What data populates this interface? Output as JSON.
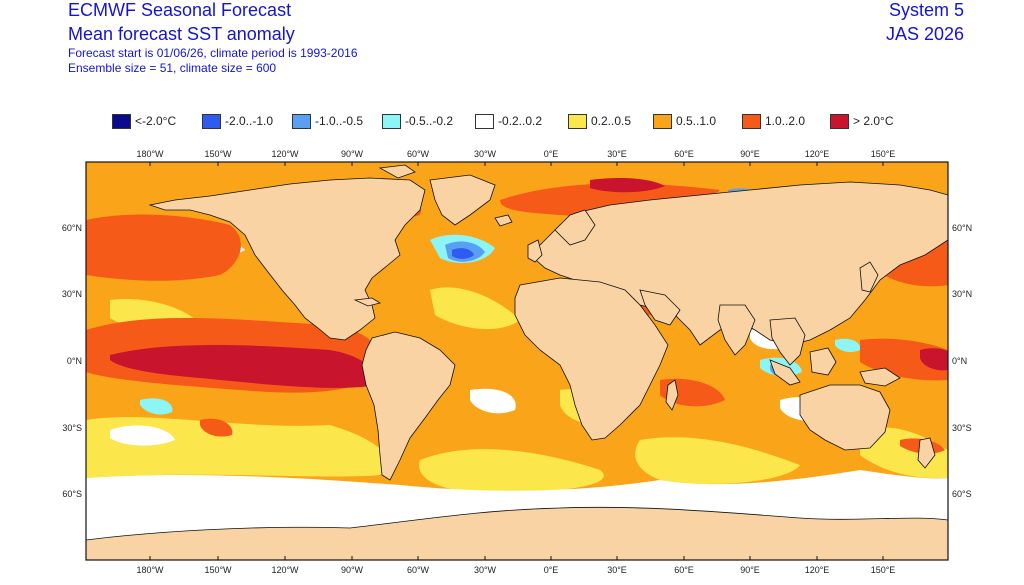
{
  "header": {
    "title": "ECMWF Seasonal Forecast",
    "subtitle": "Mean forecast SST anomaly",
    "info_line_1": "Forecast start is 01/06/26, climate period is 1993-2016",
    "info_line_2": "Ensemble size = 51, climate size = 600",
    "system": "System 5",
    "period": "JAS 2026"
  },
  "legend": [
    {
      "label": "<-2.0°C",
      "color": "#0a0a8c"
    },
    {
      "label": "-2.0..-1.0",
      "color": "#2f5bf0"
    },
    {
      "label": "-1.0..-0.5",
      "color": "#5aa0f2"
    },
    {
      "label": "-0.5..-0.2",
      "color": "#8cf5f5"
    },
    {
      "label": "-0.2..0.2",
      "color": "#ffffff"
    },
    {
      "label": "0.2..0.5",
      "color": "#fbe64b"
    },
    {
      "label": "0.5..1.0",
      "color": "#faa519"
    },
    {
      "label": "1.0..2.0",
      "color": "#f55a19"
    },
    {
      "label": "> 2.0°C",
      "color": "#c8142d"
    }
  ],
  "axes": {
    "lon_labels": [
      "180°W",
      "150°W",
      "120°W",
      "90°W",
      "60°W",
      "30°W",
      "0°E",
      "30°E",
      "60°E",
      "90°E",
      "120°E",
      "150°E"
    ],
    "lat_labels": [
      "60°N",
      "30°N",
      "0°N",
      "30°S",
      "60°S"
    ]
  },
  "colors": {
    "land": "#f9d3a3",
    "ocean_base": "#faa519",
    "text_blue": "#1414d2"
  }
}
